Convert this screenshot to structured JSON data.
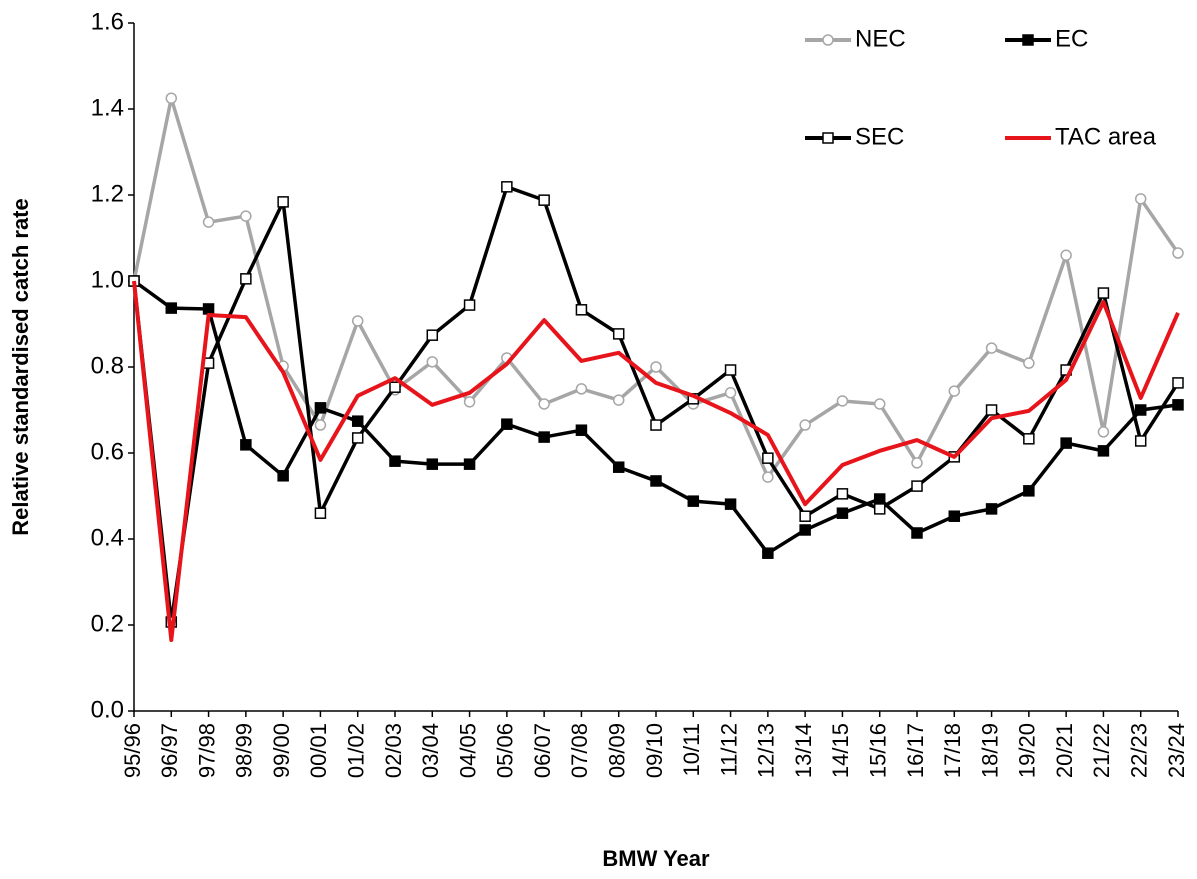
{
  "chart_data": {
    "type": "line",
    "x_label": "BMW Year",
    "y_label": "Relative standardised catch rate",
    "categories": [
      "95/96",
      "96/97",
      "97/98",
      "98/99",
      "99/00",
      "00/01",
      "01/02",
      "02/03",
      "03/04",
      "04/05",
      "05/06",
      "06/07",
      "07/08",
      "08/09",
      "09/10",
      "10/11",
      "11/12",
      "12/13",
      "13/14",
      "14/15",
      "15/16",
      "16/17",
      "17/18",
      "18/19",
      "19/20",
      "20/21",
      "21/22",
      "22/23",
      "23/24"
    ],
    "series": [
      {
        "name": "NEC",
        "color": "#a6a6a6",
        "marker": "circle",
        "marker_fill": "#ffffff",
        "values": [
          1.0,
          1.425,
          1.137,
          1.151,
          0.802,
          0.665,
          0.907,
          0.747,
          0.812,
          0.719,
          0.821,
          0.714,
          0.749,
          0.723,
          0.8,
          0.714,
          0.74,
          0.544,
          0.665,
          0.721,
          0.714,
          0.577,
          0.744,
          0.844,
          0.809,
          1.06,
          0.649,
          1.191,
          1.065
        ]
      },
      {
        "name": "EC",
        "color": "#000000",
        "marker": "square",
        "marker_fill": "#000000",
        "values": [
          1.0,
          0.937,
          0.935,
          0.619,
          0.547,
          0.705,
          0.674,
          0.581,
          0.574,
          0.574,
          0.667,
          0.637,
          0.653,
          0.567,
          0.535,
          0.488,
          0.481,
          0.367,
          0.421,
          0.46,
          0.493,
          0.414,
          0.453,
          0.47,
          0.512,
          0.623,
          0.605,
          0.7,
          0.712
        ]
      },
      {
        "name": "SEC",
        "color": "#000000",
        "marker": "square",
        "marker_fill": "#ffffff",
        "values": [
          1.0,
          0.207,
          0.809,
          1.005,
          1.184,
          0.46,
          0.635,
          0.753,
          0.874,
          0.944,
          1.219,
          1.188,
          0.933,
          0.877,
          0.665,
          0.726,
          0.793,
          0.588,
          0.453,
          0.505,
          0.47,
          0.523,
          0.591,
          0.7,
          0.633,
          0.793,
          0.972,
          0.628,
          0.763
        ]
      },
      {
        "name": "TAC area",
        "color": "#e8141b",
        "marker": "none",
        "marker_fill": "#e8141b",
        "values": [
          1.0,
          0.165,
          0.921,
          0.916,
          0.788,
          0.584,
          0.733,
          0.774,
          0.712,
          0.74,
          0.807,
          0.909,
          0.814,
          0.833,
          0.763,
          0.733,
          0.693,
          0.642,
          0.481,
          0.572,
          0.605,
          0.63,
          0.591,
          0.681,
          0.698,
          0.77,
          0.951,
          0.728,
          0.926
        ]
      }
    ],
    "ylim": [
      0,
      1.6
    ],
    "yticks": [
      {
        "value": 0,
        "label": "0.0"
      },
      0.2,
      0.4,
      0.6,
      0.8,
      {
        "value": 1,
        "label": "1.0"
      },
      1.2,
      1.4,
      1.6
    ],
    "grid": false,
    "legend": "top-right"
  }
}
